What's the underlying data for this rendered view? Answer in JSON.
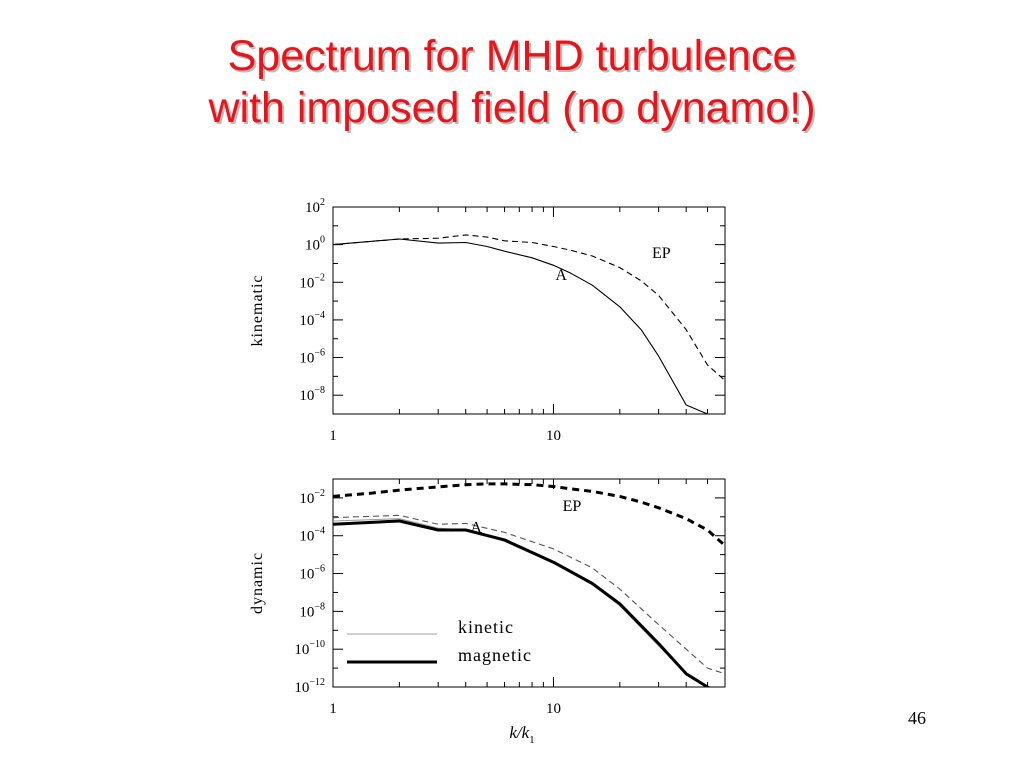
{
  "slide": {
    "title_line1": "Spectrum for MHD turbulence",
    "title_line2": "with imposed field (no dynamo!)",
    "page_number": "46",
    "title_color": "#e8141a"
  },
  "chart_data": [
    {
      "type": "line",
      "panel": "top",
      "ylabel": "kinematic",
      "xscale": "log",
      "yscale": "log",
      "xlim": [
        1,
        60
      ],
      "ylim": [
        1e-09,
        100.0
      ],
      "xticks": [
        {
          "value": 1,
          "label": "1"
        },
        {
          "value": 10,
          "label": "10"
        }
      ],
      "yticks": [
        {
          "value": 100.0,
          "base": "10",
          "exp": "2"
        },
        {
          "value": 1.0,
          "base": "10",
          "exp": "0"
        },
        {
          "value": 0.01,
          "base": "10",
          "exp": "−2"
        },
        {
          "value": 0.0001,
          "base": "10",
          "exp": "−4"
        },
        {
          "value": 1e-06,
          "base": "10",
          "exp": "−6"
        },
        {
          "value": 1e-08,
          "base": "10",
          "exp": "−8"
        }
      ],
      "annotations": [
        {
          "text": "EP",
          "x": 28,
          "y": 0.2
        },
        {
          "text": "A",
          "x": 10.2,
          "y": 0.013
        }
      ],
      "series": [
        {
          "style": "dashed",
          "weight": "thin",
          "x": [
            1,
            2,
            3,
            4,
            5,
            6,
            8,
            10,
            12,
            15,
            20,
            25,
            30,
            40,
            50,
            60
          ],
          "y": [
            1.0,
            2.0,
            2.2,
            3.3,
            2.5,
            1.6,
            1.3,
            0.8,
            0.5,
            0.25,
            0.06,
            0.012,
            0.002,
            3e-05,
            4e-07,
            6e-08
          ]
        },
        {
          "style": "solid",
          "weight": "thin",
          "x": [
            1,
            2,
            3,
            4,
            5,
            6,
            8,
            10,
            12,
            15,
            20,
            25,
            30,
            40,
            50,
            53
          ],
          "y": [
            1.0,
            2.0,
            1.2,
            1.3,
            0.8,
            0.45,
            0.2,
            0.08,
            0.03,
            0.007,
            0.0005,
            3e-05,
            1.2e-06,
            3e-09,
            1e-09,
            1e-09
          ]
        }
      ]
    },
    {
      "type": "line",
      "panel": "bottom",
      "ylabel": "dynamic",
      "xlabel_main": "k",
      "xlabel_sub": "1",
      "xscale": "log",
      "yscale": "log",
      "xlim": [
        1,
        60
      ],
      "ylim": [
        1e-12,
        0.1
      ],
      "xticks": [
        {
          "value": 1,
          "label": "1"
        },
        {
          "value": 10,
          "label": "10"
        }
      ],
      "yticks": [
        {
          "value": 0.01,
          "base": "10",
          "exp": "−2"
        },
        {
          "value": 0.0001,
          "base": "10",
          "exp": "−4"
        },
        {
          "value": 1e-06,
          "base": "10",
          "exp": "−6"
        },
        {
          "value": 1e-08,
          "base": "10",
          "exp": "−8"
        },
        {
          "value": 1e-10,
          "base": "10",
          "exp": "−10"
        },
        {
          "value": 1e-12,
          "base": "10",
          "exp": "−12"
        }
      ],
      "annotations": [
        {
          "text": "EP",
          "x": 11,
          "y": 0.002
        },
        {
          "text": "A",
          "x": 4.2,
          "y": 0.00015
        }
      ],
      "legend": [
        {
          "label": "kinetic",
          "weight": "thin",
          "color": "#a0a0a0"
        },
        {
          "label": "magnetic",
          "weight": "thick",
          "color": "#000000"
        }
      ],
      "series": [
        {
          "style": "dashed",
          "weight": "thick",
          "color": "#000000",
          "x": [
            1,
            1.5,
            2,
            3,
            4,
            5,
            6,
            8,
            10,
            12,
            15,
            20,
            25,
            30,
            40,
            50,
            60
          ],
          "y": [
            0.012,
            0.018,
            0.026,
            0.038,
            0.05,
            0.055,
            0.055,
            0.05,
            0.04,
            0.03,
            0.022,
            0.012,
            0.006,
            0.003,
            0.0008,
            0.0002,
            3e-05
          ]
        },
        {
          "style": "dashed",
          "weight": "thin",
          "color": "#555555",
          "x": [
            1,
            2,
            3,
            4,
            6,
            10,
            15,
            20,
            30,
            40,
            50,
            60
          ],
          "y": [
            0.0009,
            0.0012,
            0.0004,
            0.00045,
            0.00015,
            2e-05,
            2e-06,
            1.5e-07,
            2e-09,
            1e-10,
            1e-11,
            5e-12
          ]
        },
        {
          "style": "solid",
          "weight": "thin",
          "color": "#a0a0a0",
          "x": [
            1,
            2,
            3,
            4,
            6,
            10,
            15,
            20,
            30,
            40,
            50,
            55
          ],
          "y": [
            0.0006,
            0.0008,
            0.00025,
            0.0002,
            5e-05,
            3.5e-06,
            2.5e-07,
            2e-08,
            1.5e-10,
            5e-12,
            1e-12,
            5e-13
          ]
        },
        {
          "style": "solid",
          "weight": "thick",
          "color": "#000000",
          "x": [
            1,
            2,
            3,
            4,
            6,
            10,
            15,
            20,
            30,
            40,
            50,
            56
          ],
          "y": [
            0.0004,
            0.0006,
            0.0002,
            0.0002,
            6e-05,
            4e-06,
            3e-07,
            2.5e-08,
            2e-10,
            5e-12,
            1e-12,
            5e-13
          ]
        }
      ]
    }
  ]
}
